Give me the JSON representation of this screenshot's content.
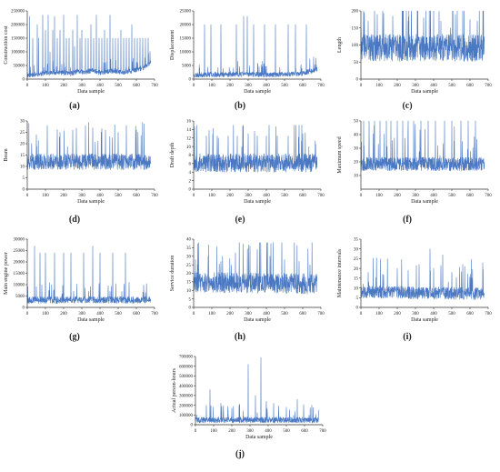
{
  "figure": {
    "series_color": "#4a78c2",
    "axis_color": "#333333"
  },
  "chart_data": [
    {
      "id": "a",
      "type": "line",
      "panel_label": "(a)",
      "xlabel": "Data sample",
      "ylabel": "Construction cost",
      "xlim": [
        0,
        700
      ],
      "ylim": [
        0,
        250000
      ],
      "xticks": [
        0,
        100,
        200,
        300,
        400,
        500,
        600,
        700
      ],
      "yticks": [
        0,
        50000,
        100000,
        150000,
        200000,
        250000
      ],
      "n": 680,
      "seed": 11,
      "base": 12000,
      "noise": 9000,
      "cap": 150000,
      "x": [
        0,
        60,
        100,
        140,
        180,
        240,
        280,
        320,
        360,
        400,
        440,
        480,
        520,
        560,
        600,
        640,
        680
      ],
      "y": [
        12000,
        16000,
        20000,
        18000,
        22000,
        17000,
        25000,
        22000,
        30000,
        21000,
        24000,
        28000,
        20000,
        26000,
        30000,
        40000,
        60000
      ],
      "peaks": [
        [
          12,
          230000
        ],
        [
          30,
          150000
        ],
        [
          55,
          200000
        ],
        [
          62,
          150000
        ],
        [
          85,
          235000
        ],
        [
          100,
          180000
        ],
        [
          115,
          235000
        ],
        [
          125,
          100000
        ],
        [
          140,
          180000
        ],
        [
          150,
          230000
        ],
        [
          165,
          150000
        ],
        [
          180,
          180000
        ],
        [
          200,
          235000
        ],
        [
          215,
          150000
        ],
        [
          230,
          150000
        ],
        [
          250,
          180000
        ],
        [
          260,
          120000
        ],
        [
          275,
          235000
        ],
        [
          290,
          150000
        ],
        [
          300,
          180000
        ],
        [
          320,
          150000
        ],
        [
          335,
          150000
        ],
        [
          350,
          200000
        ],
        [
          365,
          150000
        ],
        [
          380,
          235000
        ],
        [
          395,
          150000
        ],
        [
          410,
          150000
        ],
        [
          425,
          180000
        ],
        [
          440,
          150000
        ],
        [
          455,
          235000
        ],
        [
          470,
          150000
        ],
        [
          485,
          150000
        ],
        [
          500,
          150000
        ],
        [
          515,
          180000
        ],
        [
          530,
          150000
        ],
        [
          545,
          150000
        ],
        [
          560,
          150000
        ],
        [
          575,
          200000
        ],
        [
          590,
          150000
        ],
        [
          605,
          150000
        ],
        [
          620,
          150000
        ],
        [
          635,
          150000
        ],
        [
          650,
          150000
        ],
        [
          665,
          150000
        ]
      ]
    },
    {
      "id": "b",
      "type": "line",
      "panel_label": "(b)",
      "xlabel": "Data sample",
      "ylabel": "Displacement",
      "xlim": [
        0,
        700
      ],
      "ylim": [
        0,
        25000
      ],
      "xticks": [
        0,
        100,
        200,
        300,
        400,
        500,
        600,
        700
      ],
      "yticks": [
        0,
        5000,
        10000,
        15000,
        20000,
        25000
      ],
      "n": 680,
      "seed": 23,
      "base": 1200,
      "noise": 900,
      "cap": 20000,
      "x": [
        0,
        100,
        200,
        300,
        400,
        500,
        600,
        680
      ],
      "y": [
        1200,
        1500,
        1400,
        1600,
        1300,
        1500,
        1800,
        3500
      ],
      "peaks": [
        [
          60,
          20000
        ],
        [
          95,
          20000
        ],
        [
          150,
          20000
        ],
        [
          235,
          20000
        ],
        [
          275,
          23000
        ],
        [
          295,
          23000
        ],
        [
          330,
          20000
        ],
        [
          390,
          20000
        ],
        [
          450,
          20000
        ],
        [
          520,
          20000
        ],
        [
          560,
          20000
        ],
        [
          620,
          20000
        ]
      ]
    },
    {
      "id": "c",
      "type": "line",
      "panel_label": "(c)",
      "xlabel": "Data sample",
      "ylabel": "Length",
      "xlim": [
        0,
        700
      ],
      "ylim": [
        0,
        200
      ],
      "xticks": [
        0,
        100,
        200,
        300,
        400,
        500,
        600,
        700
      ],
      "yticks": [
        0,
        50,
        100,
        150,
        200
      ],
      "n": 680,
      "seed": 37,
      "base": 80,
      "noise": 40,
      "cap": 210,
      "x": [
        0,
        680
      ],
      "y": [
        80,
        80
      ],
      "peaks": [
        [
          40,
          170
        ],
        [
          90,
          190
        ],
        [
          120,
          210
        ],
        [
          175,
          185
        ],
        [
          230,
          200
        ],
        [
          260,
          170
        ],
        [
          310,
          210
        ],
        [
          345,
          180
        ],
        [
          400,
          200
        ],
        [
          440,
          170
        ],
        [
          520,
          190
        ],
        [
          560,
          205
        ],
        [
          600,
          175
        ],
        [
          640,
          170
        ]
      ]
    },
    {
      "id": "d",
      "type": "line",
      "panel_label": "(d)",
      "xlabel": "Data sample",
      "ylabel": "Beam",
      "xlim": [
        0,
        700
      ],
      "ylim": [
        0,
        30
      ],
      "xticks": [
        0,
        100,
        200,
        300,
        400,
        500,
        600,
        700
      ],
      "yticks": [
        0,
        5,
        10,
        15,
        20,
        25,
        30
      ],
      "n": 680,
      "seed": 41,
      "base": 11,
      "noise": 3.5,
      "cap": 30,
      "x": [
        0,
        680
      ],
      "y": [
        11,
        11
      ],
      "peaks": [
        [
          50,
          24
        ],
        [
          110,
          28
        ],
        [
          180,
          25
        ],
        [
          250,
          26
        ],
        [
          320,
          28
        ],
        [
          360,
          27
        ],
        [
          430,
          26
        ],
        [
          500,
          25
        ],
        [
          545,
          28
        ],
        [
          600,
          26
        ]
      ]
    },
    {
      "id": "e",
      "type": "line",
      "panel_label": "(e)",
      "xlabel": "Data sample",
      "ylabel": "Draft depth",
      "xlim": [
        0,
        700
      ],
      "ylim": [
        0,
        16
      ],
      "xticks": [
        0,
        100,
        200,
        300,
        400,
        500,
        600,
        700
      ],
      "yticks": [
        0,
        2,
        4,
        6,
        8,
        10,
        12,
        14,
        16
      ],
      "n": 680,
      "seed": 53,
      "base": 5.5,
      "noise": 2.2,
      "cap": 15,
      "x": [
        0,
        680
      ],
      "y": [
        5.5,
        5.5
      ],
      "peaks": [
        [
          70,
          12.5
        ],
        [
          130,
          12.5
        ],
        [
          190,
          12.5
        ],
        [
          240,
          12.5
        ],
        [
          300,
          13
        ],
        [
          350,
          12.5
        ],
        [
          400,
          12.5
        ],
        [
          460,
          12.5
        ],
        [
          520,
          12.5
        ],
        [
          580,
          15
        ],
        [
          600,
          13
        ]
      ]
    },
    {
      "id": "f",
      "type": "line",
      "panel_label": "(f)",
      "xlabel": "Data sample",
      "ylabel": "Maximum speed",
      "xlim": [
        0,
        700
      ],
      "ylim": [
        0,
        50
      ],
      "xticks": [
        0,
        100,
        200,
        300,
        400,
        500,
        600,
        700
      ],
      "yticks": [
        10,
        20,
        30,
        40,
        50
      ],
      "n": 680,
      "seed": 67,
      "base": 17,
      "noise": 5,
      "cap": 50,
      "x": [
        0,
        680
      ],
      "y": [
        17,
        17
      ],
      "peaks": [
        [
          15,
          50
        ],
        [
          45,
          50
        ],
        [
          75,
          50
        ],
        [
          105,
          50
        ],
        [
          140,
          50
        ],
        [
          165,
          50
        ],
        [
          200,
          50
        ],
        [
          230,
          50
        ],
        [
          260,
          50
        ],
        [
          290,
          50
        ],
        [
          330,
          50
        ],
        [
          370,
          50
        ],
        [
          410,
          50
        ],
        [
          460,
          50
        ],
        [
          500,
          50
        ],
        [
          550,
          50
        ],
        [
          590,
          50
        ],
        [
          630,
          50
        ]
      ]
    },
    {
      "id": "g",
      "type": "line",
      "panel_label": "(g)",
      "xlabel": "Data sample",
      "ylabel": "Main engine power",
      "xlim": [
        0,
        700
      ],
      "ylim": [
        0,
        30000
      ],
      "xticks": [
        0,
        100,
        200,
        300,
        400,
        500,
        600,
        700
      ],
      "yticks": [
        0,
        5000,
        10000,
        15000,
        20000,
        25000,
        30000
      ],
      "n": 680,
      "seed": 79,
      "base": 2800,
      "noise": 1500,
      "cap": 28000,
      "x": [
        0,
        680
      ],
      "y": [
        2800,
        2800
      ],
      "peaks": [
        [
          40,
          27000
        ],
        [
          70,
          24000
        ],
        [
          100,
          24000
        ],
        [
          150,
          24000
        ],
        [
          200,
          24000
        ],
        [
          240,
          24000
        ],
        [
          310,
          24000
        ],
        [
          360,
          27000
        ],
        [
          400,
          24000
        ],
        [
          470,
          24000
        ],
        [
          540,
          24000
        ]
      ]
    },
    {
      "id": "h",
      "type": "line",
      "panel_label": "(h)",
      "xlabel": "Data sample",
      "ylabel": "Service duration",
      "xlim": [
        0,
        700
      ],
      "ylim": [
        0,
        40
      ],
      "xticks": [
        0,
        100,
        200,
        300,
        400,
        500,
        600,
        700
      ],
      "yticks": [
        0,
        5,
        10,
        15,
        20,
        25,
        30,
        35,
        40
      ],
      "n": 680,
      "seed": 83,
      "base": 13,
      "noise": 6,
      "cap": 38,
      "x": [
        0,
        680
      ],
      "y": [
        13,
        12
      ],
      "peaks": [
        [
          10,
          28
        ],
        [
          80,
          30
        ],
        [
          150,
          27
        ],
        [
          230,
          32
        ],
        [
          310,
          36
        ],
        [
          350,
          34
        ],
        [
          420,
          30
        ],
        [
          500,
          28
        ],
        [
          580,
          27
        ],
        [
          640,
          25
        ]
      ]
    },
    {
      "id": "i",
      "type": "line",
      "panel_label": "(i)",
      "xlabel": "Data sample",
      "ylabel": "Maintenance intervals",
      "xlim": [
        0,
        700
      ],
      "ylim": [
        0,
        35
      ],
      "xticks": [
        0,
        100,
        200,
        300,
        400,
        500,
        600,
        700
      ],
      "yticks": [
        0,
        5,
        10,
        15,
        20,
        25,
        30,
        35
      ],
      "n": 680,
      "seed": 97,
      "base": 7,
      "noise": 3.2,
      "cap": 35,
      "x": [
        0,
        680
      ],
      "y": [
        7,
        6
      ],
      "peaks": [
        [
          40,
          18
        ],
        [
          120,
          17
        ],
        [
          200,
          20
        ],
        [
          260,
          19
        ],
        [
          320,
          22
        ],
        [
          380,
          30
        ],
        [
          400,
          20
        ],
        [
          450,
          27
        ],
        [
          500,
          18
        ],
        [
          560,
          22
        ],
        [
          610,
          15
        ]
      ]
    },
    {
      "id": "j",
      "type": "line",
      "panel_label": "(j)",
      "xlabel": "Data sample",
      "ylabel": "Actual person-hours",
      "xlim": [
        0,
        700
      ],
      "ylim": [
        0,
        700000
      ],
      "xticks": [
        0,
        100,
        200,
        300,
        400,
        500,
        600,
        700
      ],
      "yticks": [
        0,
        100000,
        200000,
        300000,
        400000,
        500000,
        600000,
        700000
      ],
      "n": 680,
      "seed": 101,
      "base": 40000,
      "noise": 30000,
      "cap": 700000,
      "x": [
        0,
        680
      ],
      "y": [
        40000,
        40000
      ],
      "peaks": [
        [
          60,
          200000
        ],
        [
          80,
          360000
        ],
        [
          140,
          220000
        ],
        [
          200,
          170000
        ],
        [
          240,
          200000
        ],
        [
          290,
          620000
        ],
        [
          330,
          300000
        ],
        [
          360,
          690000
        ],
        [
          390,
          240000
        ],
        [
          430,
          220000
        ],
        [
          500,
          180000
        ],
        [
          560,
          260000
        ],
        [
          640,
          200000
        ]
      ]
    }
  ]
}
